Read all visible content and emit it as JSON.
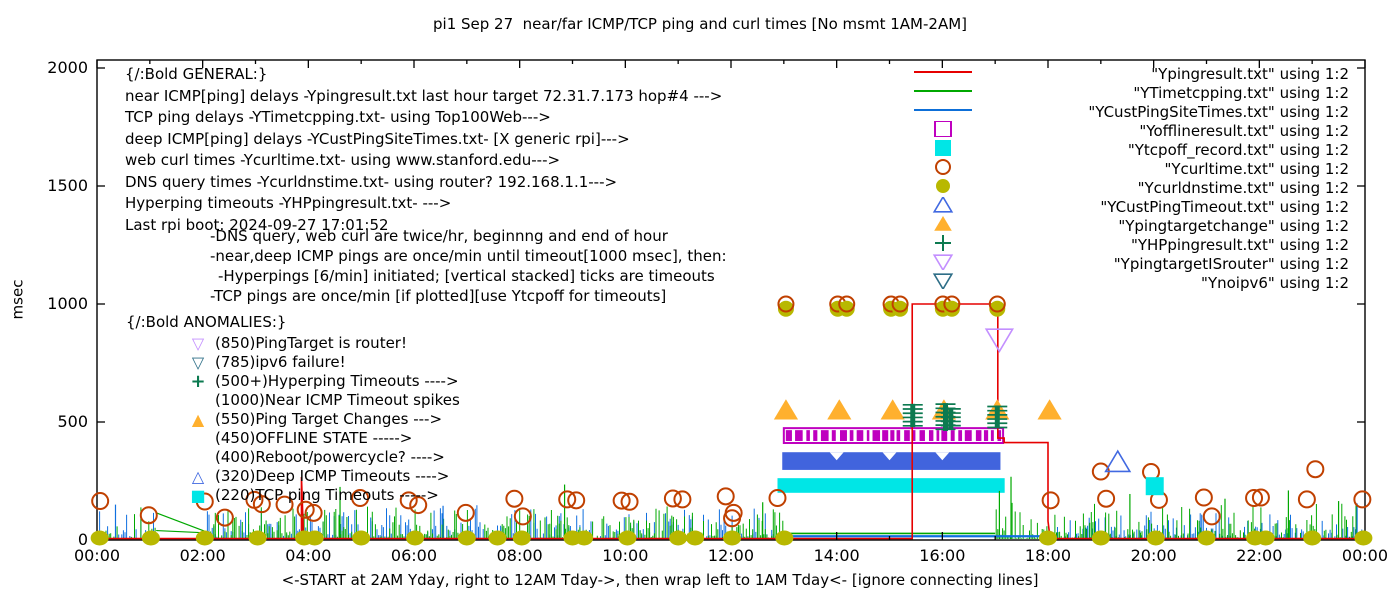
{
  "chart_data": {
    "type": "line",
    "title": "pi1 Sep 27  near/far ICMP/TCP ping and curl times [No msmt 1AM-2AM]",
    "ylabel": "msec",
    "xlabel_caption": "<-START at 2AM Yday, right to 12AM Tday->, then wrap left to 1AM Tday<- [ignore connecting lines]",
    "ylim": [
      0,
      2000
    ],
    "yticks": [
      0,
      500,
      1000,
      1500,
      2000
    ],
    "xticks": [
      "00:00",
      "02:00",
      "04:00",
      "06:00",
      "08:00",
      "10:00",
      "12:00",
      "14:00",
      "16:00",
      "18:00",
      "20:00",
      "22:00",
      "00:00"
    ],
    "grid": false,
    "legend_position": "top-right-inside",
    "legend": [
      {
        "label": "\"Ypingresult.txt\" using 1:2",
        "marker": "line",
        "color": "#e60000"
      },
      {
        "label": "\"YTimetcpping.txt\" using 1:2",
        "marker": "line",
        "color": "#00a800"
      },
      {
        "label": "\"YCustPingSiteTimes.txt\" using 1:2",
        "marker": "line",
        "color": "#0d6fd8"
      },
      {
        "label": "\"Yofflineresult.txt\" using 1:2",
        "marker": "square-open",
        "color": "#bf00bf"
      },
      {
        "label": "\"Ytcpoff_record.txt\" using 1:2",
        "marker": "square-filled",
        "color": "#00e6e6"
      },
      {
        "label": "\"Ycurltime.txt\" using 1:2",
        "marker": "circle-open",
        "color": "#c04000"
      },
      {
        "label": "\"Ycurldnstime.txt\" using 1:2",
        "marker": "circle-filled",
        "color": "#b8b800"
      },
      {
        "label": "\"YCustPingTimeout.txt\" using 1:2",
        "marker": "triangle-up-open",
        "color": "#4169e1"
      },
      {
        "label": "\"Ypingtargetchange\" using 1:2",
        "marker": "triangle-up-filled",
        "color": "#ffb02e"
      },
      {
        "label": "\"YHPpingresult.txt\" using 1:2",
        "marker": "plus",
        "color": "#0c7a50"
      },
      {
        "label": "\"YpingtargetISrouter\" using 1:2",
        "marker": "triangle-down-open",
        "color": "#c38fff"
      },
      {
        "label": "\"Ynoipv6\" using 1:2",
        "marker": "triangle-down-open",
        "color": "#2e6e87"
      }
    ],
    "annotations": {
      "general": [
        "{/:Bold GENERAL:}",
        "near ICMP[ping] delays -Ypingresult.txt last hour target 72.31.7.173 hop#4 --->",
        "TCP ping delays -YTimetcpping.txt- using Top100Web--->",
        "deep ICMP[ping] delays -YCustPingSiteTimes.txt- [X generic rpi]--->",
        "web curl times -Ycurltime.txt- using www.stanford.edu--->",
        "DNS query times -Ycurldnstime.txt- using router? 192.168.1.1--->",
        "Hyperping timeouts -YHPpingresult.txt- --->",
        "Last rpi boot: 2024-09-27 17:01:52"
      ],
      "notes": [
        "-DNS query, web curl are twice/hr, beginnng and end of hour",
        "-near,deep ICMP pings are once/min until timeout[1000 msec], then:",
        "-Hyperpings [6/min] initiated; [vertical stacked] ticks are timeouts",
        "-TCP pings are once/min [if plotted][use Ytcpoff for timeouts]"
      ],
      "anomalies_title": "{/:Bold ANOMALIES:}",
      "anomalies": [
        {
          "marker": "tri-down",
          "color": "#c38fff",
          "text": "(850)PingTarget is router!"
        },
        {
          "marker": "tri-down",
          "color": "#2e6e87",
          "text": "(785)ipv6 failure!"
        },
        {
          "marker": "plus",
          "color": "#0c7a50",
          "text": "(500+)Hyperping Timeouts ---->"
        },
        {
          "marker": "",
          "color": "",
          "text": "(1000)Near ICMP Timeout spikes"
        },
        {
          "marker": "tri-up-f",
          "color": "#ffb02e",
          "text": "(550)Ping Target Changes --->"
        },
        {
          "marker": "",
          "color": "",
          "text": "(450)OFFLINE STATE ----->"
        },
        {
          "marker": "",
          "color": "",
          "text": "(400)Reboot/powercycle? ---->"
        },
        {
          "marker": "tri-up-o",
          "color": "#4169e1",
          "text": "(320)Deep ICMP Timeouts ---->"
        },
        {
          "marker": "square-f",
          "color": "#00e6e6",
          "text": "(220)TCP ping Timeouts ----->"
        }
      ]
    },
    "series_data": {
      "red_path": [
        [
          0,
          6
        ],
        [
          3.87,
          6
        ],
        [
          3.87,
          267
        ],
        [
          3.91,
          6
        ],
        [
          15.43,
          6
        ],
        [
          15.43,
          1000
        ],
        [
          17.05,
          1000
        ],
        [
          17.05,
          432
        ],
        [
          17.17,
          432
        ],
        [
          17.17,
          413
        ],
        [
          18.0,
          413
        ],
        [
          18.0,
          80
        ],
        [
          18.04,
          6
        ],
        [
          24,
          6
        ]
      ],
      "green_event_flat": [
        [
          13.0,
          28
        ],
        [
          17.0,
          28
        ]
      ],
      "blue_event_flat": [
        [
          12.92,
          16
        ],
        [
          18.0,
          16
        ]
      ],
      "green_gap_lines": [
        [
          [
            1.12,
            115
          ],
          [
            2.1,
            32
          ]
        ],
        [
          [
            1.12,
            40
          ],
          [
            2.1,
            30
          ]
        ]
      ],
      "noise_blue": [
        [
          0.02,
          1.1,
          125
        ],
        [
          2.06,
          12.92,
          130
        ],
        [
          18.0,
          23.97,
          115
        ]
      ],
      "noise_green": [
        [
          0.02,
          1.15,
          135
        ],
        [
          2.06,
          13.0,
          140
        ],
        [
          17.02,
          23.97,
          150
        ]
      ],
      "green_spikes": [
        [
          4.6,
          225
        ],
        [
          8.85,
          235
        ],
        [
          12.6,
          160
        ],
        [
          17.08,
          208
        ],
        [
          17.3,
          268
        ],
        [
          19.55,
          195
        ],
        [
          21.35,
          175
        ],
        [
          22.55,
          210
        ],
        [
          23.5,
          165
        ]
      ],
      "blue_spikes": [
        [
          0.35,
          150
        ],
        [
          6.55,
          145
        ],
        [
          23.85,
          155
        ]
      ],
      "bands": {
        "tcp_timeout_cyan": {
          "t0": 12.88,
          "t1": 17.18,
          "m0": 200,
          "m1": 262,
          "color": "#00e6e6"
        },
        "deep_timeout_blue": {
          "t0": 12.97,
          "t1": 17.1,
          "m0": 297,
          "m1": 372,
          "color": "#4164dd",
          "notch_hours": [
            14.0,
            15.0,
            16.0
          ]
        },
        "offline_magenta": {
          "t0": 13.0,
          "t1": 17.15,
          "m0": 411,
          "m1": 474,
          "color": "#bf00bf"
        }
      },
      "dns_baseline_hours": [
        0.05,
        1.02,
        2.04,
        3.04,
        3.92,
        4.12,
        5.0,
        6.02,
        7.0,
        7.58,
        8.04,
        9.0,
        9.22,
        10.04,
        11.0,
        11.32,
        12.02,
        13.01,
        18.0,
        19.0,
        20.04,
        21.0,
        21.92,
        22.12,
        23.0,
        23.97
      ],
      "dns_high_points": [
        [
          13.04,
          1
        ],
        [
          14.02,
          2
        ],
        [
          15.03,
          2
        ],
        [
          16.01,
          2
        ],
        [
          17.04,
          1
        ]
      ],
      "dns_high_msec": 980,
      "curl_circles": [
        [
          0.06,
          165
        ],
        [
          0.98,
          105
        ],
        [
          2.04,
          163
        ],
        [
          2.42,
          95
        ],
        [
          2.98,
          170
        ],
        [
          3.12,
          152
        ],
        [
          3.55,
          150
        ],
        [
          3.95,
          128
        ],
        [
          4.1,
          115
        ],
        [
          4.98,
          178
        ],
        [
          5.9,
          168
        ],
        [
          6.08,
          148
        ],
        [
          6.98,
          115
        ],
        [
          7.9,
          175
        ],
        [
          8.06,
          100
        ],
        [
          8.9,
          172
        ],
        [
          9.07,
          168
        ],
        [
          9.93,
          167
        ],
        [
          10.08,
          162
        ],
        [
          10.9,
          176
        ],
        [
          11.08,
          172
        ],
        [
          11.9,
          185
        ],
        [
          12.02,
          92
        ],
        [
          12.05,
          115
        ],
        [
          12.88,
          178
        ],
        [
          18.05,
          168
        ],
        [
          19.0,
          290
        ],
        [
          19.1,
          175
        ],
        [
          19.95,
          288
        ],
        [
          20.1,
          170
        ],
        [
          20.95,
          180
        ],
        [
          21.1,
          100
        ],
        [
          21.9,
          178
        ],
        [
          22.03,
          180
        ],
        [
          22.9,
          172
        ],
        [
          23.06,
          300
        ],
        [
          23.95,
          172
        ]
      ],
      "target_change_triangles": {
        "hours": [
          13.04,
          14.05,
          15.06,
          16.03,
          17.04,
          18.03
        ],
        "msec": 550
      },
      "hyperping_clusters": [
        [
          15.44,
          478,
          577
        ],
        [
          16.06,
          462,
          580
        ],
        [
          16.16,
          468,
          560
        ],
        [
          17.04,
          474,
          570
        ]
      ],
      "isrouter_marker": [
        17.08,
        850
      ],
      "deep_timeout_triangle": [
        19.32,
        330
      ],
      "tcp_timeout_square": [
        20.02,
        228
      ]
    }
  }
}
